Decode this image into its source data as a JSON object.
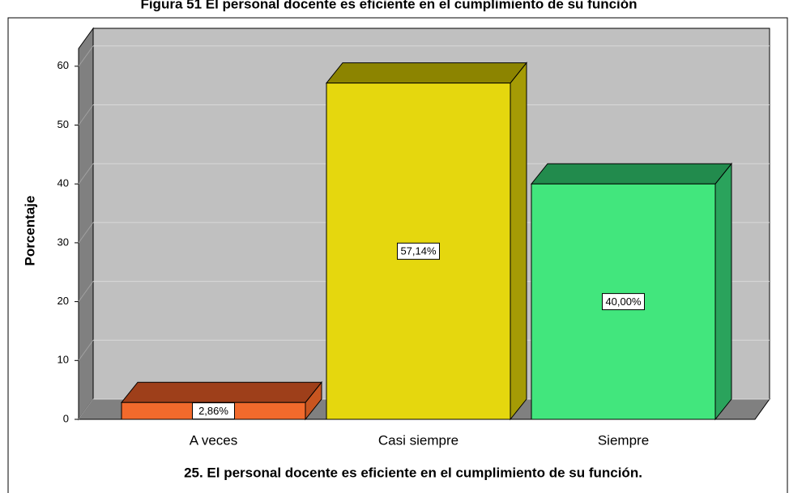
{
  "chart_data": {
    "type": "bar3d",
    "title": "Figura 51 El personal docente es eficiente en el cumplimiento de su función",
    "xlabel": "25. El personal docente es eficiente en el cumplimiento de su función.",
    "ylabel": "Porcentaje",
    "categories": [
      "A veces",
      "Casi siempre",
      "Siempre"
    ],
    "values": [
      2.86,
      57.14,
      40.0
    ],
    "value_labels": [
      "2,86%",
      "57,14%",
      "40,00%"
    ],
    "colors": [
      [
        "#f26a2c",
        "#9e3f1a",
        "#c85520"
      ],
      [
        "#e5d70e",
        "#8c8400",
        "#a59b05"
      ],
      [
        "#42e67d",
        "#228b4d",
        "#2aa35c"
      ]
    ],
    "ylim": [
      0,
      63
    ],
    "yticks": [
      0,
      10,
      20,
      30,
      40,
      50,
      60
    ],
    "grid": true
  }
}
